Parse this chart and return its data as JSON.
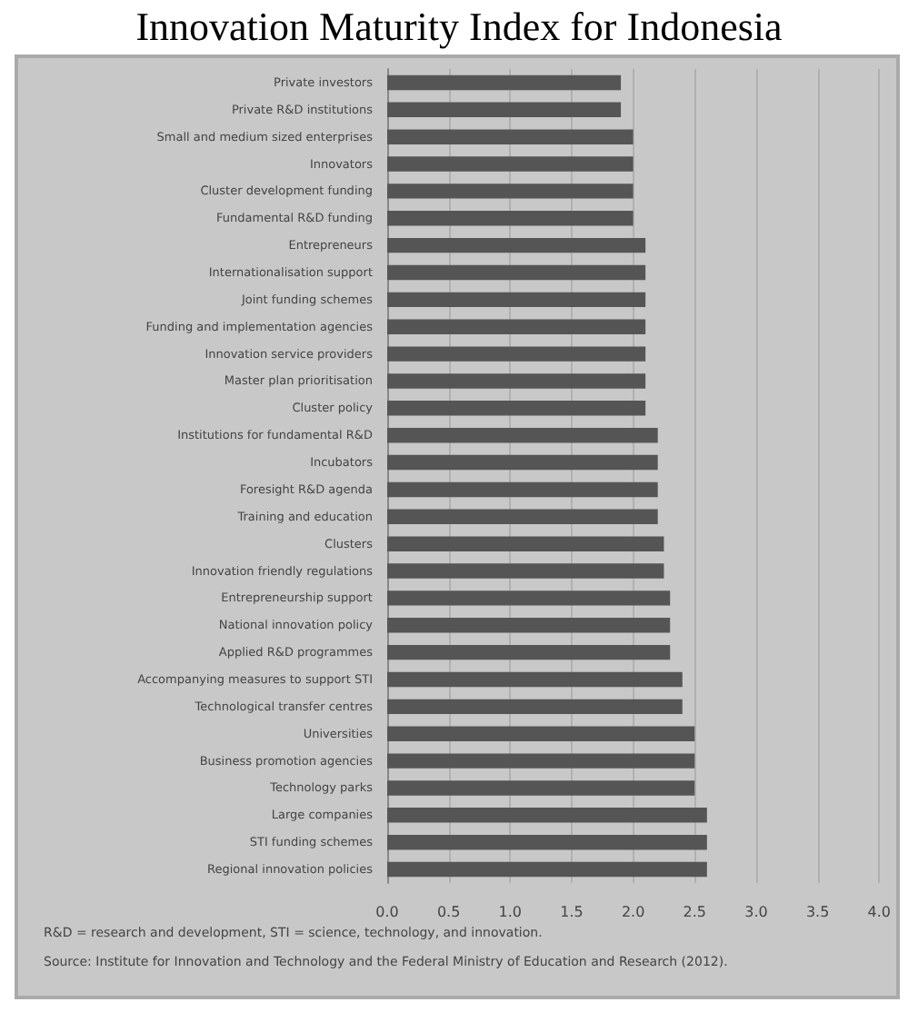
{
  "chart_data": {
    "type": "bar",
    "orientation": "horizontal",
    "title": "Innovation Maturity Index for Indonesia",
    "categories": [
      "Private investors",
      "Private R&D institutions",
      "Small and medium sized enterprises",
      "Innovators",
      "Cluster development funding",
      "Fundamental R&D funding",
      "Entrepreneurs",
      "Internationalisation support",
      "Joint funding schemes",
      "Funding and implementation agencies",
      "Innovation service providers",
      "Master plan prioritisation",
      "Cluster policy",
      "Institutions for fundamental R&D",
      "Incubators",
      "Foresight R&D agenda",
      "Training and education",
      "Clusters",
      "Innovation friendly regulations",
      "Entrepreneurship support",
      "National innovation policy",
      "Applied R&D programmes",
      "Accompanying measures to support STI",
      "Technological transfer centres",
      "Universities",
      "Business promotion agencies",
      "Technology parks",
      "Large companies",
      "STI funding schemes",
      "Regional innovation policies"
    ],
    "values": [
      1.9,
      1.9,
      2.0,
      2.0,
      2.0,
      2.0,
      2.1,
      2.1,
      2.1,
      2.1,
      2.1,
      2.1,
      2.1,
      2.2,
      2.2,
      2.2,
      2.2,
      2.25,
      2.25,
      2.3,
      2.3,
      2.3,
      2.4,
      2.4,
      2.5,
      2.5,
      2.5,
      2.6,
      2.6,
      2.6
    ],
    "color": "#555555",
    "xlim": [
      0,
      4
    ],
    "xticks": [
      {
        "value": 0,
        "label": "0.0"
      },
      {
        "value": 0.5,
        "label": "0.5"
      },
      {
        "value": 1,
        "label": "1.0"
      },
      {
        "value": 1.5,
        "label": "1.5"
      },
      {
        "value": 2,
        "label": "2.0"
      },
      {
        "value": 2.5,
        "label": "2.5"
      },
      {
        "value": 3,
        "label": "3.0"
      },
      {
        "value": 3.5,
        "label": "3.5"
      },
      {
        "value": 4,
        "label": "4.0"
      }
    ],
    "grid": "x",
    "annotations": [
      "R&D = research and development, STI = science, technology, and innovation.",
      "Source: Institute for Innovation and Technology and the Federal Ministry of Education and Research (2012)."
    ]
  }
}
